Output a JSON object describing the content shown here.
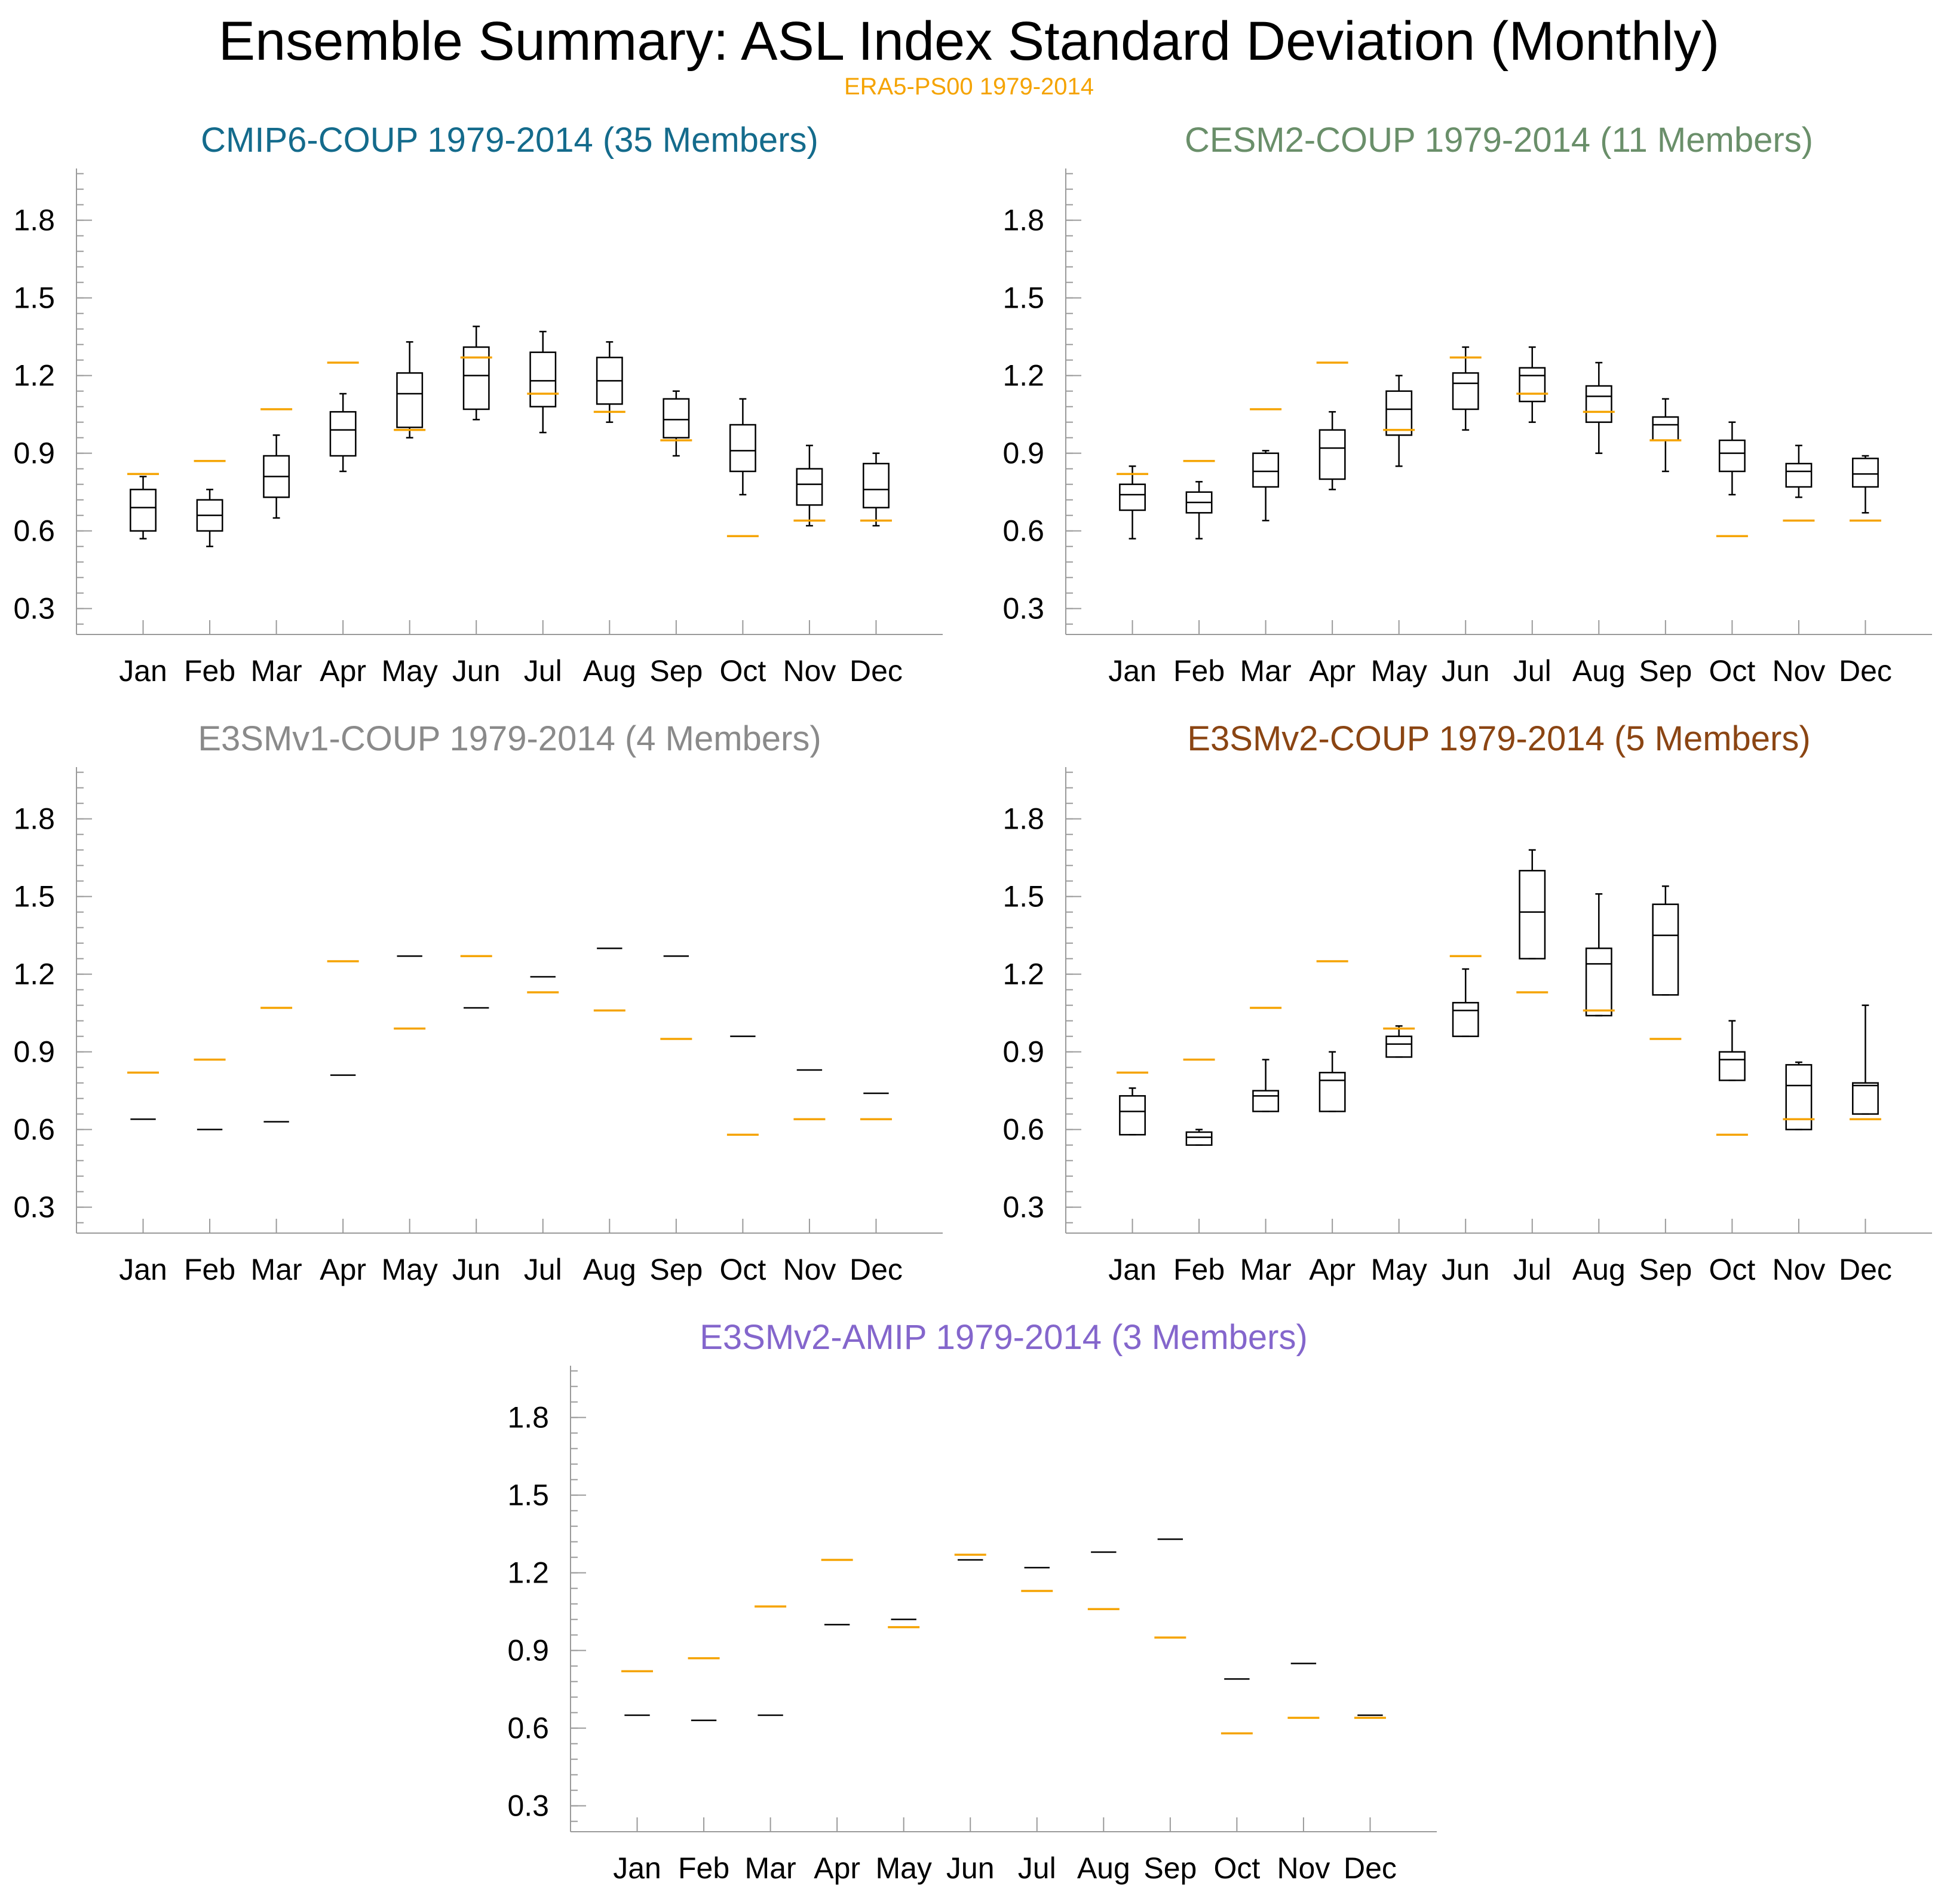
{
  "figure": {
    "title": "Ensemble Summary: ASL Index Standard Deviation (Monthly)",
    "subtitle": "ERA5-PS00 1979-2014",
    "subtitle_color": "#F5A300"
  },
  "chart_data": [
    {
      "type": "box",
      "title": "CMIP6-COUP 1979-2014 (35 Members)",
      "title_color": "#146B8C",
      "categories": [
        "Jan",
        "Feb",
        "Mar",
        "Apr",
        "May",
        "Jun",
        "Jul",
        "Aug",
        "Sep",
        "Oct",
        "Nov",
        "Dec"
      ],
      "yticks": [
        "0.3",
        "0.6",
        "0.9",
        "1.2",
        "1.5",
        "1.8"
      ],
      "ylim": [
        0.2,
        2.0
      ],
      "series": [
        {
          "values": [
            {
              "whislo": 0.57,
              "q1": 0.6,
              "med": 0.69,
              "q3": 0.76,
              "whishi": 0.81
            },
            {
              "whislo": 0.54,
              "q1": 0.6,
              "med": 0.66,
              "q3": 0.72,
              "whishi": 0.76
            },
            {
              "whislo": 0.65,
              "q1": 0.73,
              "med": 0.81,
              "q3": 0.89,
              "whishi": 0.97
            },
            {
              "whislo": 0.83,
              "q1": 0.89,
              "med": 0.99,
              "q3": 1.06,
              "whishi": 1.13
            },
            {
              "whislo": 0.96,
              "q1": 1.0,
              "med": 1.13,
              "q3": 1.21,
              "whishi": 1.33
            },
            {
              "whislo": 1.03,
              "q1": 1.07,
              "med": 1.2,
              "q3": 1.31,
              "whishi": 1.39
            },
            {
              "whislo": 0.98,
              "q1": 1.08,
              "med": 1.18,
              "q3": 1.29,
              "whishi": 1.37
            },
            {
              "whislo": 1.02,
              "q1": 1.09,
              "med": 1.18,
              "q3": 1.27,
              "whishi": 1.33
            },
            {
              "whislo": 0.89,
              "q1": 0.96,
              "med": 1.03,
              "q3": 1.11,
              "whishi": 1.14
            },
            {
              "whislo": 0.74,
              "q1": 0.83,
              "med": 0.91,
              "q3": 1.01,
              "whishi": 1.11
            },
            {
              "whislo": 0.62,
              "q1": 0.7,
              "med": 0.78,
              "q3": 0.84,
              "whishi": 0.93
            },
            {
              "whislo": 0.62,
              "q1": 0.69,
              "med": 0.76,
              "q3": 0.86,
              "whishi": 0.9
            }
          ]
        },
        {
          "color": "#F5A300",
          "values": [
            0.82,
            0.87,
            1.07,
            1.25,
            0.99,
            1.27,
            1.13,
            1.06,
            0.95,
            0.58,
            0.64,
            0.64
          ]
        }
      ]
    },
    {
      "type": "box",
      "title": "CESM2-COUP 1979-2014 (11 Members)",
      "title_color": "#6A8F6A",
      "categories": [
        "Jan",
        "Feb",
        "Mar",
        "Apr",
        "May",
        "Jun",
        "Jul",
        "Aug",
        "Sep",
        "Oct",
        "Nov",
        "Dec"
      ],
      "yticks": [
        "0.3",
        "0.6",
        "0.9",
        "1.2",
        "1.5",
        "1.8"
      ],
      "ylim": [
        0.2,
        2.0
      ],
      "series": [
        {
          "values": [
            {
              "whislo": 0.57,
              "q1": 0.68,
              "med": 0.74,
              "q3": 0.78,
              "whishi": 0.85
            },
            {
              "whislo": 0.57,
              "q1": 0.67,
              "med": 0.71,
              "q3": 0.75,
              "whishi": 0.79
            },
            {
              "whislo": 0.64,
              "q1": 0.77,
              "med": 0.83,
              "q3": 0.9,
              "whishi": 0.91
            },
            {
              "whislo": 0.76,
              "q1": 0.8,
              "med": 0.92,
              "q3": 0.99,
              "whishi": 1.06
            },
            {
              "whislo": 0.85,
              "q1": 0.97,
              "med": 1.07,
              "q3": 1.14,
              "whishi": 1.2
            },
            {
              "whislo": 0.99,
              "q1": 1.07,
              "med": 1.17,
              "q3": 1.21,
              "whishi": 1.31
            },
            {
              "whislo": 1.02,
              "q1": 1.1,
              "med": 1.2,
              "q3": 1.23,
              "whishi": 1.31
            },
            {
              "whislo": 0.9,
              "q1": 1.02,
              "med": 1.12,
              "q3": 1.16,
              "whishi": 1.25
            },
            {
              "whislo": 0.83,
              "q1": 0.95,
              "med": 1.01,
              "q3": 1.04,
              "whishi": 1.11
            },
            {
              "whislo": 0.74,
              "q1": 0.83,
              "med": 0.9,
              "q3": 0.95,
              "whishi": 1.02
            },
            {
              "whislo": 0.73,
              "q1": 0.77,
              "med": 0.83,
              "q3": 0.86,
              "whishi": 0.93
            },
            {
              "whislo": 0.67,
              "q1": 0.77,
              "med": 0.82,
              "q3": 0.88,
              "whishi": 0.89
            }
          ]
        },
        {
          "color": "#F5A300",
          "values": [
            0.82,
            0.87,
            1.07,
            1.25,
            0.99,
            1.27,
            1.13,
            1.06,
            0.95,
            0.58,
            0.64,
            0.64
          ]
        }
      ]
    },
    {
      "type": "box",
      "title": "E3SMv1-COUP 1979-2014 (4 Members)",
      "title_color": "#8A8A8A",
      "categories": [
        "Jan",
        "Feb",
        "Mar",
        "Apr",
        "May",
        "Jun",
        "Jul",
        "Aug",
        "Sep",
        "Oct",
        "Nov",
        "Dec"
      ],
      "yticks": [
        "0.3",
        "0.6",
        "0.9",
        "1.2",
        "1.5",
        "1.8"
      ],
      "ylim": [
        0.2,
        2.0
      ],
      "series": [
        {
          "values": [
            {
              "whislo": 0.64,
              "q1": 0.64,
              "med": 0.64,
              "q3": 0.64,
              "whishi": 0.64
            },
            {
              "whislo": 0.6,
              "q1": 0.6,
              "med": 0.6,
              "q3": 0.6,
              "whishi": 0.6
            },
            {
              "whislo": 0.63,
              "q1": 0.63,
              "med": 0.63,
              "q3": 0.63,
              "whishi": 0.63
            },
            {
              "whislo": 0.81,
              "q1": 0.81,
              "med": 0.81,
              "q3": 0.81,
              "whishi": 0.81
            },
            {
              "whislo": 1.27,
              "q1": 1.27,
              "med": 1.27,
              "q3": 1.27,
              "whishi": 1.27
            },
            {
              "whislo": 1.07,
              "q1": 1.07,
              "med": 1.07,
              "q3": 1.07,
              "whishi": 1.07
            },
            {
              "whislo": 1.19,
              "q1": 1.19,
              "med": 1.19,
              "q3": 1.19,
              "whishi": 1.19
            },
            {
              "whislo": 1.3,
              "q1": 1.3,
              "med": 1.3,
              "q3": 1.3,
              "whishi": 1.3
            },
            {
              "whislo": 1.27,
              "q1": 1.27,
              "med": 1.27,
              "q3": 1.27,
              "whishi": 1.27
            },
            {
              "whislo": 0.96,
              "q1": 0.96,
              "med": 0.96,
              "q3": 0.96,
              "whishi": 0.96
            },
            {
              "whislo": 0.83,
              "q1": 0.83,
              "med": 0.83,
              "q3": 0.83,
              "whishi": 0.83
            },
            {
              "whislo": 0.74,
              "q1": 0.74,
              "med": 0.74,
              "q3": 0.74,
              "whishi": 0.74
            }
          ]
        },
        {
          "color": "#F5A300",
          "values": [
            0.82,
            0.87,
            1.07,
            1.25,
            0.99,
            1.27,
            1.13,
            1.06,
            0.95,
            0.58,
            0.64,
            0.64
          ]
        }
      ]
    },
    {
      "type": "box",
      "title": "E3SMv2-COUP 1979-2014 (5 Members)",
      "title_color": "#8B4513",
      "categories": [
        "Jan",
        "Feb",
        "Mar",
        "Apr",
        "May",
        "Jun",
        "Jul",
        "Aug",
        "Sep",
        "Oct",
        "Nov",
        "Dec"
      ],
      "yticks": [
        "0.3",
        "0.6",
        "0.9",
        "1.2",
        "1.5",
        "1.8"
      ],
      "ylim": [
        0.2,
        2.0
      ],
      "series": [
        {
          "values": [
            {
              "whislo": 0.58,
              "q1": 0.58,
              "med": 0.67,
              "q3": 0.73,
              "whishi": 0.76
            },
            {
              "whislo": 0.54,
              "q1": 0.54,
              "med": 0.57,
              "q3": 0.59,
              "whishi": 0.6
            },
            {
              "whislo": 0.67,
              "q1": 0.67,
              "med": 0.73,
              "q3": 0.75,
              "whishi": 0.87
            },
            {
              "whislo": 0.67,
              "q1": 0.67,
              "med": 0.79,
              "q3": 0.82,
              "whishi": 0.9
            },
            {
              "whislo": 0.88,
              "q1": 0.88,
              "med": 0.93,
              "q3": 0.96,
              "whishi": 1.0
            },
            {
              "whislo": 0.96,
              "q1": 0.96,
              "med": 1.06,
              "q3": 1.09,
              "whishi": 1.22
            },
            {
              "whislo": 1.26,
              "q1": 1.26,
              "med": 1.44,
              "q3": 1.6,
              "whishi": 1.68
            },
            {
              "whislo": 1.04,
              "q1": 1.04,
              "med": 1.24,
              "q3": 1.3,
              "whishi": 1.51
            },
            {
              "whislo": 1.12,
              "q1": 1.12,
              "med": 1.35,
              "q3": 1.47,
              "whishi": 1.54
            },
            {
              "whislo": 0.79,
              "q1": 0.79,
              "med": 0.87,
              "q3": 0.9,
              "whishi": 1.02
            },
            {
              "whislo": 0.6,
              "q1": 0.6,
              "med": 0.77,
              "q3": 0.85,
              "whishi": 0.86
            },
            {
              "whislo": 0.66,
              "q1": 0.66,
              "med": 0.77,
              "q3": 0.78,
              "whishi": 1.08
            }
          ]
        },
        {
          "color": "#F5A300",
          "values": [
            0.82,
            0.87,
            1.07,
            1.25,
            0.99,
            1.27,
            1.13,
            1.06,
            0.95,
            0.58,
            0.64,
            0.64
          ]
        }
      ]
    },
    {
      "type": "box",
      "title": "E3SMv2-AMIP 1979-2014 (3 Members)",
      "title_color": "#8466CC",
      "categories": [
        "Jan",
        "Feb",
        "Mar",
        "Apr",
        "May",
        "Jun",
        "Jul",
        "Aug",
        "Sep",
        "Oct",
        "Nov",
        "Dec"
      ],
      "yticks": [
        "0.3",
        "0.6",
        "0.9",
        "1.2",
        "1.5",
        "1.8"
      ],
      "ylim": [
        0.2,
        2.0
      ],
      "series": [
        {
          "values": [
            {
              "whislo": 0.65,
              "q1": 0.65,
              "med": 0.65,
              "q3": 0.65,
              "whishi": 0.65
            },
            {
              "whislo": 0.63,
              "q1": 0.63,
              "med": 0.63,
              "q3": 0.63,
              "whishi": 0.63
            },
            {
              "whislo": 0.65,
              "q1": 0.65,
              "med": 0.65,
              "q3": 0.65,
              "whishi": 0.65
            },
            {
              "whislo": 1.0,
              "q1": 1.0,
              "med": 1.0,
              "q3": 1.0,
              "whishi": 1.0
            },
            {
              "whislo": 1.02,
              "q1": 1.02,
              "med": 1.02,
              "q3": 1.02,
              "whishi": 1.02
            },
            {
              "whislo": 1.25,
              "q1": 1.25,
              "med": 1.25,
              "q3": 1.25,
              "whishi": 1.25
            },
            {
              "whislo": 1.22,
              "q1": 1.22,
              "med": 1.22,
              "q3": 1.22,
              "whishi": 1.22
            },
            {
              "whislo": 1.28,
              "q1": 1.28,
              "med": 1.28,
              "q3": 1.28,
              "whishi": 1.28
            },
            {
              "whislo": 1.33,
              "q1": 1.33,
              "med": 1.33,
              "q3": 1.33,
              "whishi": 1.33
            },
            {
              "whislo": 0.79,
              "q1": 0.79,
              "med": 0.79,
              "q3": 0.79,
              "whishi": 0.79
            },
            {
              "whislo": 0.85,
              "q1": 0.85,
              "med": 0.85,
              "q3": 0.85,
              "whishi": 0.85
            },
            {
              "whislo": 0.65,
              "q1": 0.65,
              "med": 0.65,
              "q3": 0.65,
              "whishi": 0.65
            }
          ]
        },
        {
          "color": "#F5A300",
          "values": [
            0.82,
            0.87,
            1.07,
            1.25,
            0.99,
            1.27,
            1.13,
            1.06,
            0.95,
            0.58,
            0.64,
            0.64
          ]
        }
      ]
    }
  ]
}
